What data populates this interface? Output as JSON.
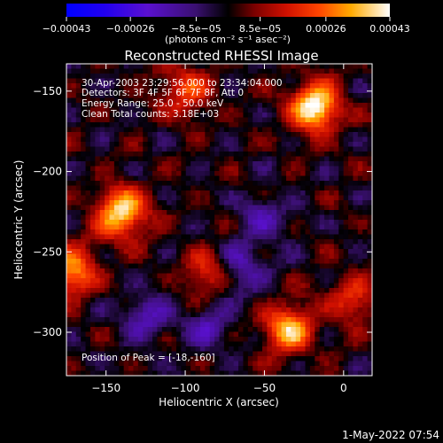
{
  "chart_data": {
    "type": "heatmap",
    "title": "Reconstructed RHESSI Image",
    "xlabel": "Heliocentric X (arcsec)",
    "ylabel": "Heliocentric Y (arcsec)",
    "xlim": [
      -175,
      18
    ],
    "ylim": [
      -327,
      -133
    ],
    "xticks": [
      -150,
      -100,
      -50,
      0
    ],
    "yticks": [
      -150,
      -200,
      -250,
      -300
    ],
    "xtick_labels": [
      "−150",
      "−100",
      "−50",
      "0"
    ],
    "ytick_labels": [
      "−150",
      "−200",
      "−250",
      "−300"
    ],
    "colorbar": {
      "ticks": [
        -0.00043,
        -0.00026,
        -8.5e-05,
        8.5e-05,
        0.00026,
        0.00043
      ],
      "tick_labels": [
        "−0.00043",
        "−0.00026",
        "−8.5e−05",
        "8.5e−05",
        "0.00026",
        "0.00043"
      ],
      "range": [
        -0.00043,
        0.00043
      ],
      "unit_label": "(photons cm⁻² s⁻¹ asec⁻²)"
    },
    "annotations": [
      "30-Apr-2003 23:29:56.000 to 23:34:04.000",
      "Detectors: 3F 4F 5F 6F 7F 8F, Att 0",
      "Energy Range: 25.0 - 50.0 keV",
      "Clean    Total counts: 3.18E+03",
      "Position of Peak = [-18,-160]"
    ],
    "peaks": [
      {
        "x": -18,
        "y": -160,
        "value": 0.00043
      },
      {
        "x": -140,
        "y": -226,
        "value": 0.0004
      },
      {
        "x": -35,
        "y": -298,
        "value": 0.00034
      },
      {
        "x": -172,
        "y": -262,
        "value": 0.00031
      },
      {
        "x": -100,
        "y": -150,
        "value": 0.00022
      },
      {
        "x": 5,
        "y": -280,
        "value": 0.00018
      },
      {
        "x": -85,
        "y": -265,
        "value": 0.0002
      }
    ],
    "troughs": [
      {
        "x": -65,
        "y": -262,
        "value": -0.00018
      },
      {
        "x": -125,
        "y": -290,
        "value": -0.00016
      },
      {
        "x": -85,
        "y": -295,
        "value": -0.00015
      },
      {
        "x": -50,
        "y": -230,
        "value": -0.00014
      }
    ]
  },
  "timestamp": "1-May-2022 07:54"
}
